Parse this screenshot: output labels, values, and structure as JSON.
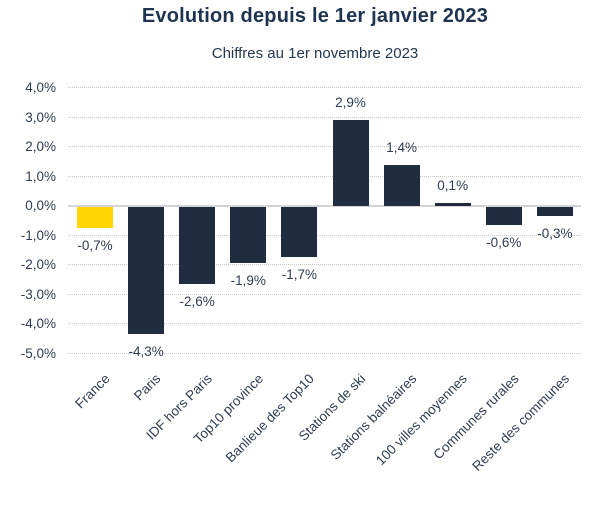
{
  "header": {
    "title": "Evolution depuis le 1er janvier 2023",
    "subtitle": "Chiffres au 1er novembre 2023"
  },
  "colors": {
    "bar": "#202c3f",
    "highlight_bar": "#ffd502",
    "text": "#2f3d52",
    "title_text": "#1e3450",
    "gridline": "#c8c8c8",
    "zero_line": "#d4d4d4",
    "background": "#ffffff"
  },
  "chart_data": {
    "type": "bar",
    "title": "Evolution depuis le 1er janvier 2023",
    "subtitle": "Chiffres au 1er novembre 2023",
    "categories": [
      "France",
      "Paris",
      "IDF hors Paris",
      "Top10 province",
      "Banlieue des Top10",
      "Stations de ski",
      "Stations balnéaires",
      "100 villes moyennes",
      "Communes rurales",
      "Reste des communes"
    ],
    "values": [
      -0.7,
      -4.3,
      -2.6,
      -1.9,
      -1.7,
      2.9,
      1.4,
      0.1,
      -0.6,
      -0.3
    ],
    "data_labels": [
      "-0,7%",
      "-4,3%",
      "-2,6%",
      "-1,9%",
      "-1,7%",
      "2,9%",
      "1,4%",
      "0,1%",
      "-0,6%",
      "-0,3%"
    ],
    "highlight_index": 0,
    "bar_color": "#202c3f",
    "highlight_color": "#ffd502",
    "xlabel": "",
    "ylabel": "",
    "ylim": [
      -5,
      4
    ],
    "yticks": [
      4,
      3,
      2,
      1,
      0,
      -1,
      -2,
      -3,
      -4,
      -5
    ],
    "ytick_labels": [
      "4,0%",
      "3,0%",
      "2,0%",
      "1,0%",
      "0,0%",
      "-1,0%",
      "-2,0%",
      "-3,0%",
      "-4,0%",
      "-5,0%"
    ],
    "grid": "horizontal-dotted",
    "legend": "none",
    "x_tick_rotation_deg": 45
  }
}
